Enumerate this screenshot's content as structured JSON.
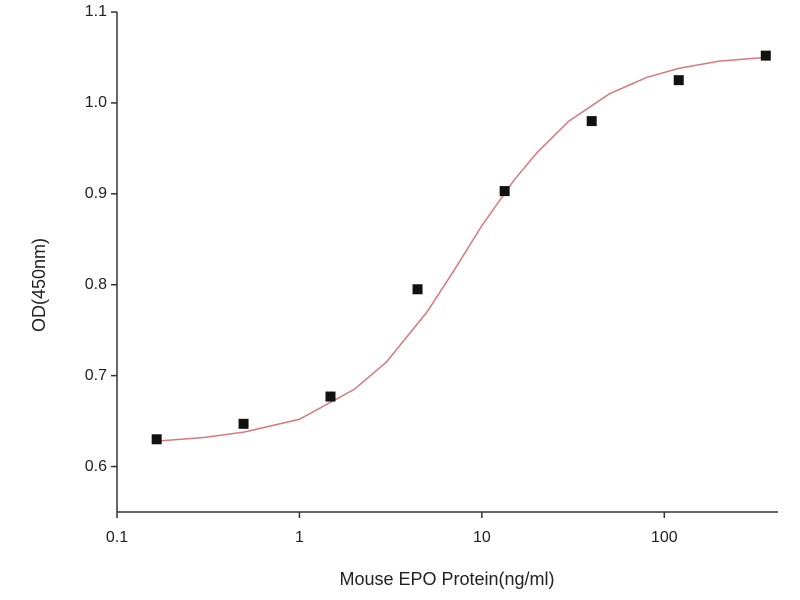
{
  "chart_data": {
    "type": "scatter",
    "x_label": "Mouse EPO Protein(ng/ml)",
    "y_label": "OD(450nm)",
    "x_log": true,
    "x": [
      0.165,
      0.494,
      1.48,
      4.44,
      13.33,
      40,
      120,
      360
    ],
    "values": [
      0.63,
      0.647,
      0.677,
      0.795,
      0.903,
      0.98,
      1.025,
      1.052
    ],
    "color": "#111111",
    "fit": {
      "color": "#d9777f",
      "x": [
        0.165,
        0.3,
        0.5,
        1,
        2,
        3,
        5,
        7,
        10,
        15,
        20,
        30,
        50,
        80,
        120,
        200,
        360
      ],
      "values": [
        0.628,
        0.632,
        0.638,
        0.652,
        0.685,
        0.715,
        0.77,
        0.815,
        0.865,
        0.915,
        0.945,
        0.98,
        1.01,
        1.028,
        1.038,
        1.046,
        1.05
      ]
    },
    "xlim": [
      0.1,
      420
    ],
    "ylim": [
      0.55,
      1.1
    ],
    "xticks": [
      0.1,
      1,
      10,
      100
    ],
    "yticks": [
      0.6,
      0.7,
      0.8,
      0.9,
      {
        "value": 1.0,
        "label": "1.0"
      },
      1.1
    ]
  }
}
